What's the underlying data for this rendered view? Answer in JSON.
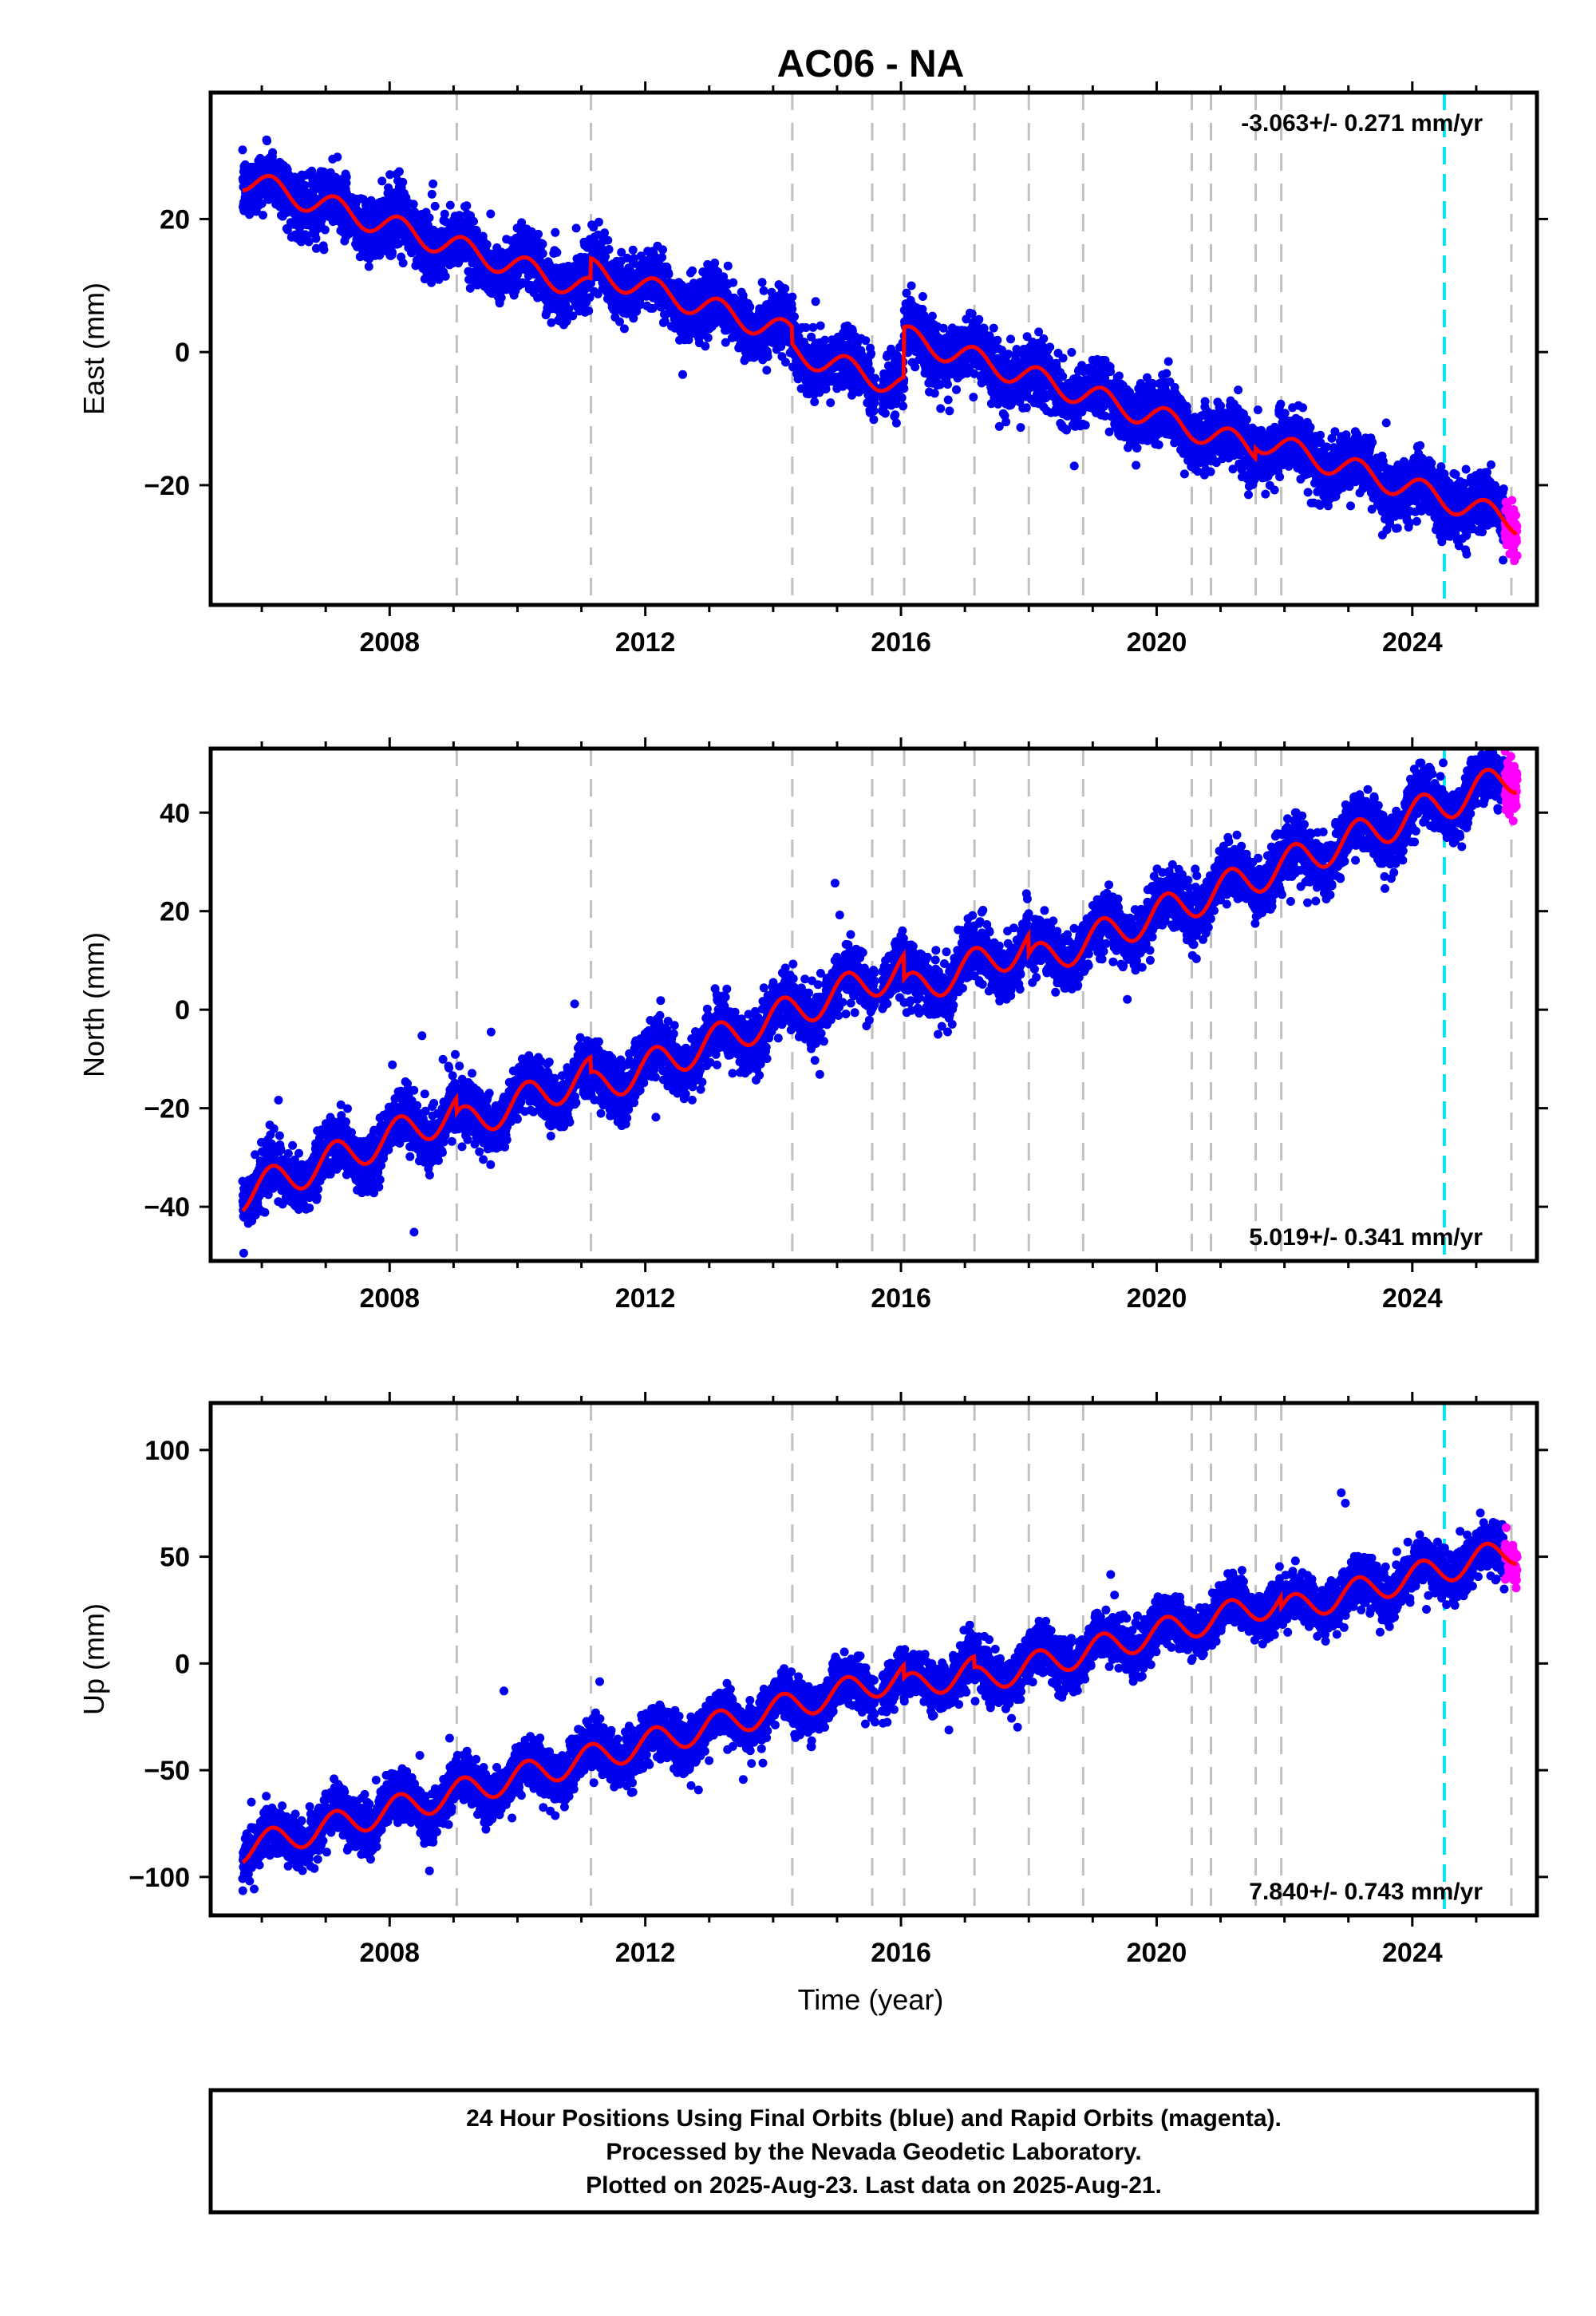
{
  "title": "AC06 - NA",
  "xlabel": "Time (year)",
  "x_ticks": [
    "2008",
    "2012",
    "2016",
    "2020",
    "2024"
  ],
  "colors": {
    "final": "#0000ee",
    "rapid": "#ff00ff",
    "model": "#ff0000",
    "steps": "#c0c0c0",
    "event": "#00e5ee"
  },
  "chart_data": [
    {
      "type": "scatter",
      "id": "east",
      "ylabel": "East (mm)",
      "rate": "-3.063+/- 0.271 mm/yr",
      "rate_position": "top-right",
      "xlim": [
        2005.2,
        2025.95
      ],
      "ylim": [
        -38,
        39
      ],
      "yticks": [
        20,
        0,
        -20
      ],
      "ytick_labels": [
        "20",
        "0",
        "−20"
      ],
      "steps": [
        2009.05,
        2011.15,
        2014.3,
        2015.55,
        2016.05,
        2017.15,
        2018.0,
        2018.85,
        2020.55,
        2020.85,
        2021.55,
        2021.95,
        2025.55
      ],
      "event": 2024.5,
      "trend": {
        "t0": 2005.7,
        "y0": 26.0,
        "slope": -3.063,
        "amplitude": 1.8
      },
      "offsets": [
        [
          2011.15,
          3.0
        ],
        [
          2014.3,
          -2.5
        ],
        [
          2016.05,
          7.5
        ],
        [
          2021.55,
          1.5
        ]
      ],
      "scatter_sd": 2.2,
      "rapid_range": [
        2025.45,
        2025.64
      ]
    },
    {
      "type": "scatter",
      "id": "north",
      "ylabel": "North (mm)",
      "rate": "5.019+/- 0.341 mm/yr",
      "rate_position": "bottom-right",
      "xlim": [
        2005.2,
        2025.95
      ],
      "ylim": [
        -51,
        53
      ],
      "yticks": [
        40,
        20,
        0,
        -20,
        -40
      ],
      "ytick_labels": [
        "40",
        "20",
        "0",
        "−20",
        "−40"
      ],
      "steps": [
        2009.05,
        2011.15,
        2014.3,
        2015.55,
        2016.05,
        2017.15,
        2018.0,
        2018.85,
        2020.55,
        2020.85,
        2021.55,
        2021.95,
        2025.55
      ],
      "event": 2024.5,
      "trend": {
        "t0": 2005.7,
        "y0": -37.5,
        "slope": 5.019,
        "amplitude": 3.5
      },
      "offsets": [
        [
          2009.05,
          -3.0
        ],
        [
          2011.15,
          -3.0
        ],
        [
          2016.05,
          -5.0
        ],
        [
          2018.0,
          -4.0
        ]
      ],
      "scatter_sd": 2.8,
      "rapid_range": [
        2025.45,
        2025.64
      ]
    },
    {
      "type": "scatter",
      "id": "up",
      "ylabel": "Up (mm)",
      "rate": "7.840+/- 0.743 mm/yr",
      "rate_position": "bottom-right",
      "xlim": [
        2005.2,
        2025.95
      ],
      "ylim": [
        -118,
        122
      ],
      "yticks": [
        100,
        50,
        0,
        -50,
        -100
      ],
      "ytick_labels": [
        "100",
        "50",
        "0",
        "−50",
        "−100"
      ],
      "steps": [
        2009.05,
        2011.15,
        2014.3,
        2015.55,
        2016.05,
        2017.15,
        2018.0,
        2018.85,
        2020.55,
        2020.85,
        2021.55,
        2021.95,
        2025.55
      ],
      "event": 2024.5,
      "trend": {
        "t0": 2005.7,
        "y0": -87.0,
        "slope": 7.84,
        "amplitude": 6.5
      },
      "offsets": [
        [
          2016.05,
          -6.0
        ],
        [
          2017.15,
          -5.0
        ],
        [
          2021.95,
          -5.0
        ]
      ],
      "scatter_sd": 5.5,
      "rapid_range": [
        2025.45,
        2025.64
      ]
    }
  ],
  "footer": {
    "line1": "24 Hour Positions Using Final Orbits (blue) and Rapid Orbits (magenta).",
    "line2": "Processed by the Nevada Geodetic Laboratory.",
    "line3": "Plotted on 2025-Aug-23. Last data on 2025-Aug-21."
  }
}
